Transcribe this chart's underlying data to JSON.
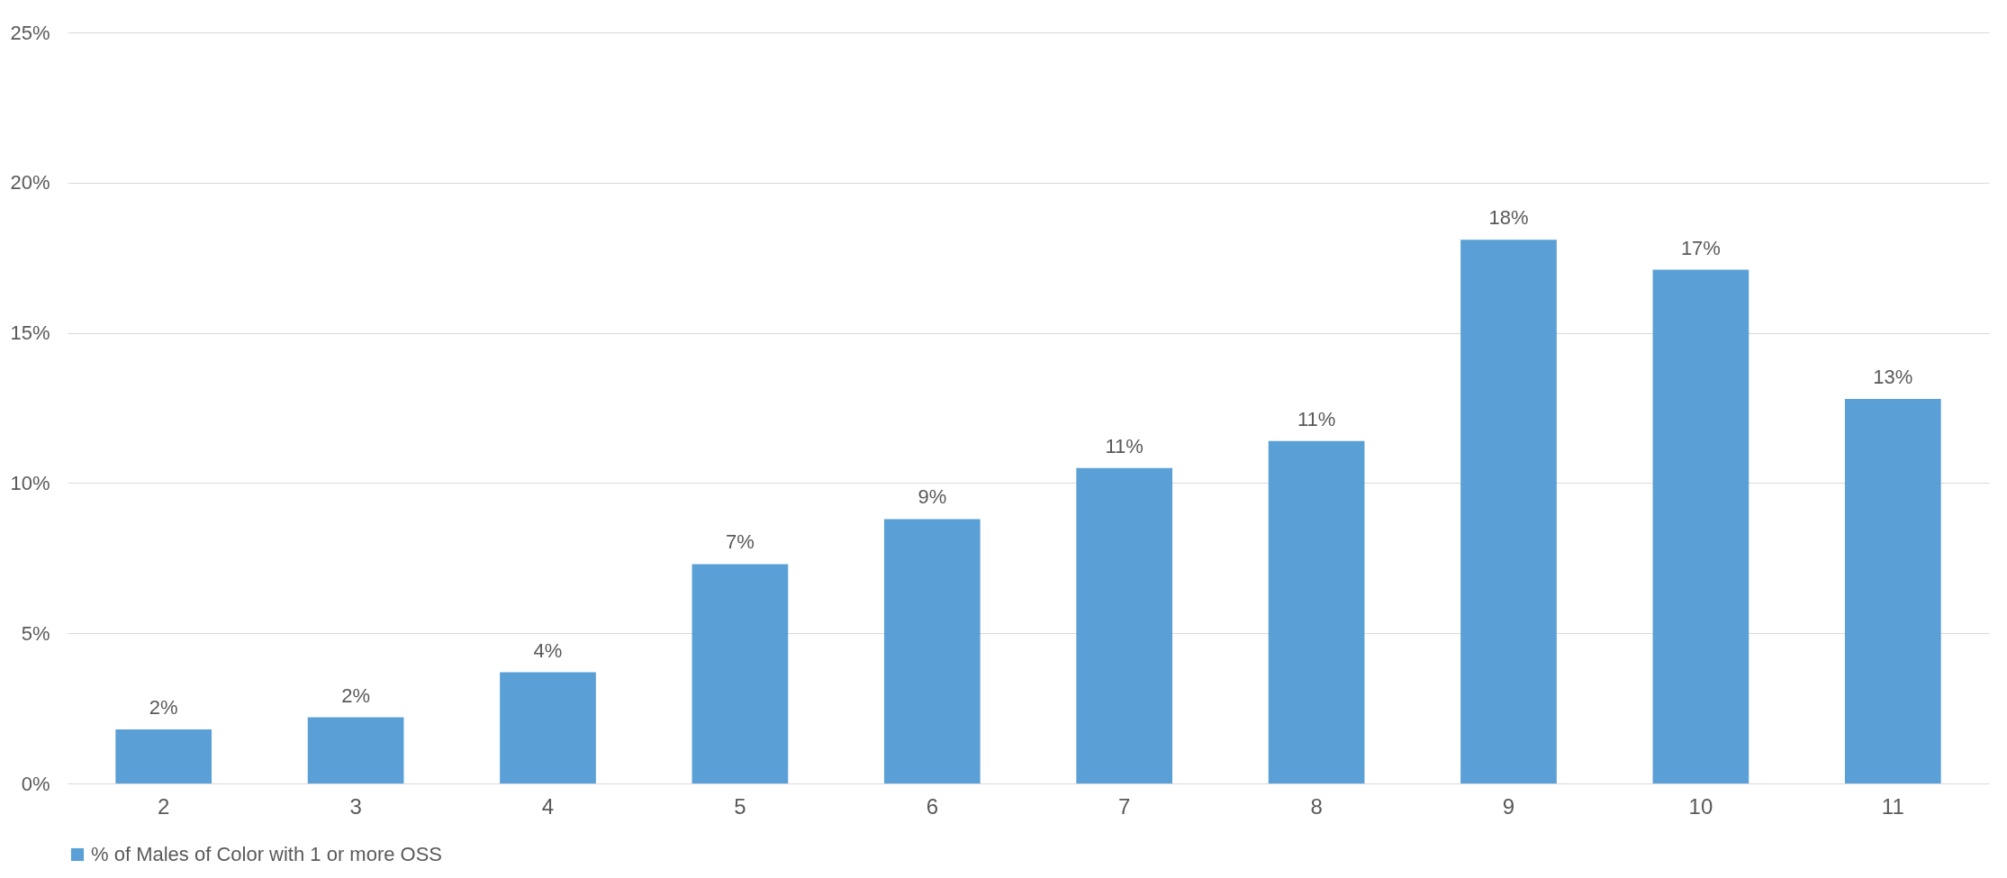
{
  "chart_data": {
    "type": "bar",
    "categories": [
      "2",
      "3",
      "4",
      "5",
      "6",
      "7",
      "8",
      "9",
      "10",
      "11"
    ],
    "series": [
      {
        "name": "% of Males of Color with 1 or more OSS",
        "color": "#5a9fd6",
        "values": [
          1.8,
          2.2,
          3.7,
          7.3,
          8.8,
          10.5,
          11.4,
          18.1,
          17.1,
          12.8
        ],
        "value_labels": [
          "2%",
          "2%",
          "4%",
          "7%",
          "9%",
          "11%",
          "11%",
          "18%",
          "17%",
          "13%"
        ]
      }
    ],
    "ylim": [
      0,
      25
    ],
    "yticks": [
      {
        "value": 0,
        "label": "0%"
      },
      {
        "value": 5,
        "label": "5%"
      },
      {
        "value": 10,
        "label": "10%"
      },
      {
        "value": 15,
        "label": "15%"
      },
      {
        "value": 20,
        "label": "20%"
      },
      {
        "value": 25,
        "label": "25%"
      }
    ],
    "grid": "y",
    "legend": "bottom"
  }
}
